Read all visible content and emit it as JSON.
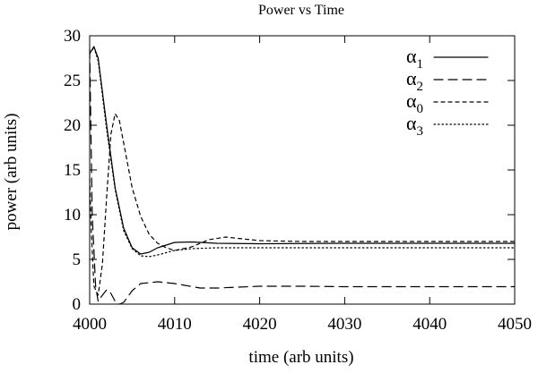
{
  "chart_data": {
    "type": "line",
    "title": "Power vs Time",
    "xlabel": "time (arb units)",
    "ylabel": "power (arb units)",
    "xlim": [
      4000,
      4050
    ],
    "ylim": [
      0,
      30
    ],
    "xticks": [
      "4000",
      "4010",
      "4020",
      "4030",
      "4040",
      "4050"
    ],
    "yticks": [
      "0",
      "5",
      "10",
      "15",
      "20",
      "25",
      "30"
    ],
    "grid": false,
    "legend_position": "top-right",
    "series": [
      {
        "name": "α",
        "subscript": "1",
        "style": "solid",
        "color": "#000000",
        "x": [
          4000,
          4000.5,
          4001,
          4002,
          4003,
          4004,
          4005,
          4006,
          4007,
          4008,
          4010,
          4012,
          4015,
          4020,
          4030,
          4040,
          4050
        ],
        "y": [
          28.0,
          28.8,
          27.5,
          20.0,
          13.0,
          8.5,
          6.3,
          5.6,
          5.8,
          6.3,
          6.9,
          6.95,
          6.8,
          6.75,
          6.8,
          6.8,
          6.8
        ]
      },
      {
        "name": "α",
        "subscript": "2",
        "style": "dashed",
        "color": "#000000",
        "x": [
          4000,
          4000.3,
          4000.7,
          4001,
          4001.5,
          4002,
          4002.5,
          4003,
          4003.5,
          4004,
          4005,
          4006,
          4008,
          4010,
          4013,
          4015,
          4020,
          4025,
          4030,
          4035,
          4040,
          4050
        ],
        "y": [
          28.5,
          10.0,
          2.0,
          0.3,
          1.0,
          1.6,
          1.2,
          0.3,
          0.0,
          0.2,
          1.5,
          2.3,
          2.5,
          2.3,
          1.8,
          1.8,
          2.0,
          2.0,
          1.95,
          1.95,
          1.95,
          1.95
        ]
      },
      {
        "name": "α",
        "subscript": "0",
        "style": "short-dashed",
        "color": "#000000",
        "x": [
          4000,
          4000.2,
          4000.5,
          4001,
          4001.5,
          4002,
          4002.5,
          4003,
          4003.5,
          4004,
          4005,
          4006,
          4007,
          4008,
          4009,
          4010,
          4012,
          4014,
          4016,
          4018,
          4020,
          4025,
          4030,
          4040,
          4050
        ],
        "y": [
          14.0,
          8.0,
          2.0,
          1.0,
          4.5,
          12.0,
          19.0,
          21.3,
          20.5,
          18.0,
          13.0,
          9.8,
          7.8,
          6.8,
          6.3,
          6.0,
          6.4,
          7.2,
          7.5,
          7.3,
          7.1,
          7.0,
          7.0,
          7.0,
          7.0
        ]
      },
      {
        "name": "α",
        "subscript": "3",
        "style": "dotted",
        "color": "#000000",
        "x": [
          4000,
          4000.5,
          4001,
          4002,
          4003,
          4004,
          4005,
          4006,
          4007,
          4008,
          4010,
          4012,
          4015,
          4020,
          4030,
          4040,
          4050
        ],
        "y": [
          28.0,
          28.7,
          27.2,
          19.5,
          12.8,
          8.2,
          6.2,
          5.4,
          5.3,
          5.5,
          6.0,
          6.2,
          6.3,
          6.3,
          6.3,
          6.3,
          6.3
        ]
      }
    ]
  }
}
